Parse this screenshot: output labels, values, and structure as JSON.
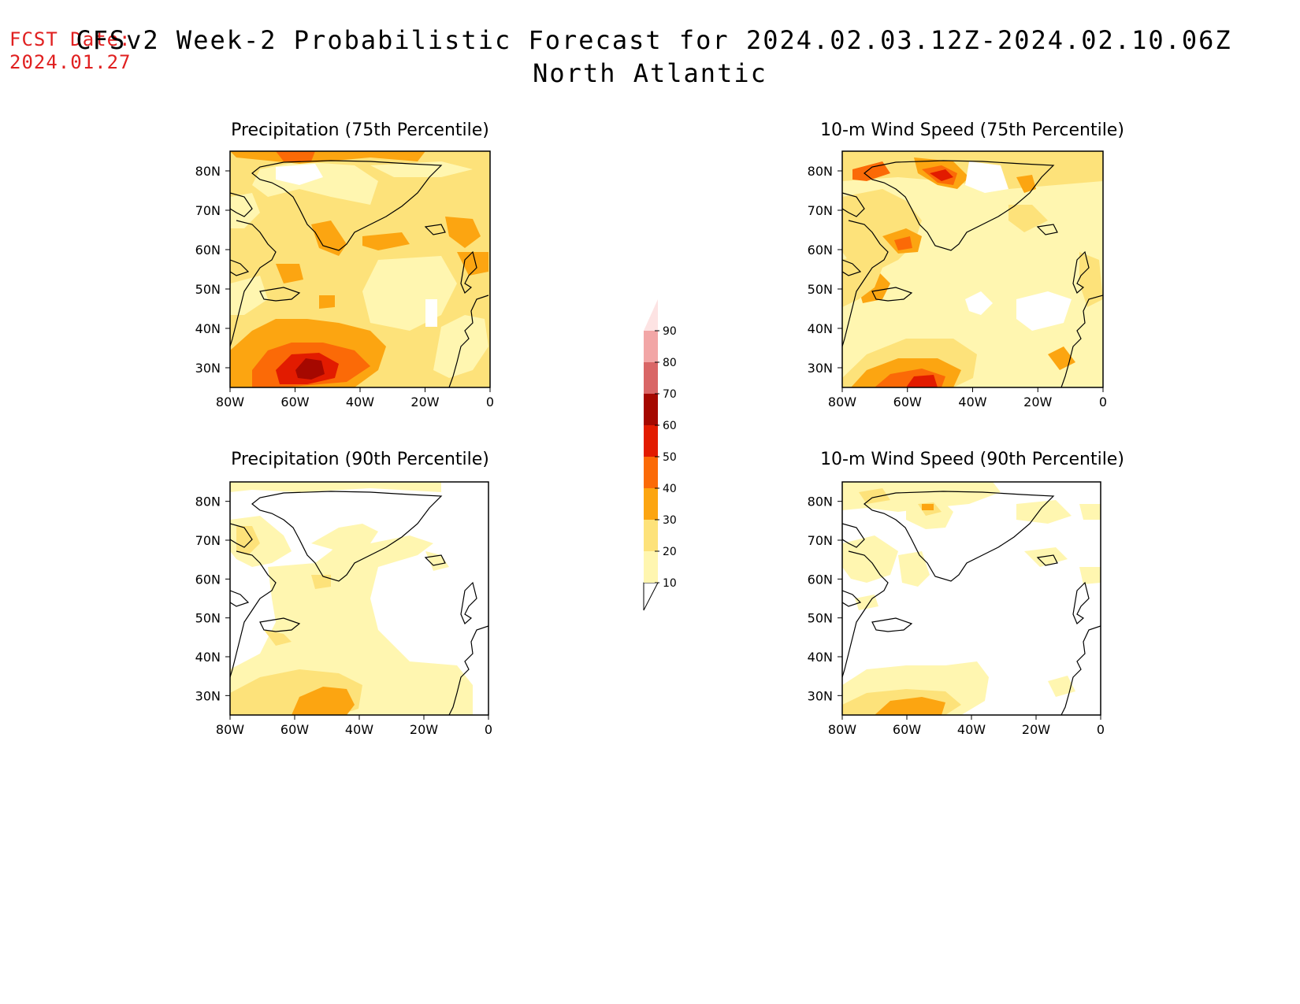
{
  "header": {
    "fcst_label": "FCST Date:",
    "fcst_date": "2024.01.27",
    "title": "CFSv2 Week-2 Probabilistic Forecast for 2024.02.03.12Z-2024.02.10.06Z",
    "region": "North Atlantic"
  },
  "axes": {
    "lat_labels": [
      "80N",
      "70N",
      "60N",
      "50N",
      "40N",
      "30N"
    ],
    "lon_labels": [
      "80W",
      "60W",
      "40W",
      "20W",
      "0"
    ]
  },
  "panels": [
    {
      "id": "precip-75",
      "title": "Precipitation (75th Percentile)"
    },
    {
      "id": "wind-75",
      "title": "10-m Wind Speed (75th Percentile)"
    },
    {
      "id": "precip-90",
      "title": "Precipitation (90th Percentile)"
    },
    {
      "id": "wind-90",
      "title": "10-m Wind Speed (90th Percentile)"
    }
  ],
  "colorbar": {
    "levels": [
      "10",
      "20",
      "30",
      "40",
      "50",
      "60",
      "70",
      "80",
      "90"
    ],
    "colors": [
      "#fff6b0",
      "#fde27a",
      "#fca511",
      "#fb6a07",
      "#e21b00",
      "#a50800",
      "#d96666",
      "#f2a6a6",
      "#fde3e3"
    ]
  }
}
